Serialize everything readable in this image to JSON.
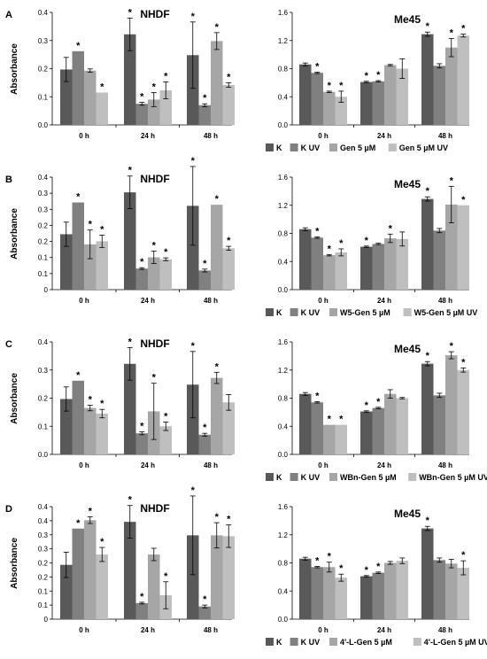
{
  "colors": {
    "K": "#595959",
    "K_UV": "#808080",
    "T1": "#a6a6a6",
    "T2": "#bfbfbf"
  },
  "panels": [
    {
      "letter": "A",
      "legend": [
        "K",
        "K UV",
        "Gen 5 µM",
        "Gen 5 µM UV"
      ]
    },
    {
      "letter": "B",
      "legend": [
        "K",
        "K UV",
        "W5-Gen 5 µM",
        "W5-Gen 5 µM UV"
      ]
    },
    {
      "letter": "C",
      "legend": [
        "K",
        "K UV",
        "WBn-Gen 5 µM",
        "WBn-Gen 5 µM UV"
      ]
    },
    {
      "letter": "D",
      "legend": [
        "K",
        "K UV",
        "4'-L-Gen 5 µM",
        "4'-L-Gen 5 µM UV"
      ]
    }
  ],
  "chart_data": [
    {
      "panel": "A",
      "type": "bar",
      "title": "NHDF",
      "ylabel": "Absorbance",
      "categories": [
        "0 h",
        "24 h",
        "48 h"
      ],
      "ylim": [
        0,
        0.4
      ],
      "yticks": [
        "0.0",
        "0.1",
        "0.2",
        "0.3",
        "0.4"
      ],
      "series": [
        {
          "name": "K",
          "values": [
            0.197,
            0.322,
            0.248
          ],
          "err": [
            0.043,
            0.058,
            0.118
          ],
          "sig": [
            false,
            true,
            true
          ]
        },
        {
          "name": "K UV",
          "values": [
            0.262,
            0.075,
            0.07
          ],
          "err": [
            0.0,
            0.005,
            0.005
          ],
          "sig": [
            true,
            true,
            true
          ]
        },
        {
          "name": "Gen 5 µM",
          "values": [
            0.193,
            0.09,
            0.298
          ],
          "err": [
            0.006,
            0.025,
            0.03
          ],
          "sig": [
            false,
            true,
            true
          ]
        },
        {
          "name": "Gen 5 µM UV",
          "values": [
            0.115,
            0.123,
            0.142
          ],
          "err": [
            0.0,
            0.03,
            0.008
          ],
          "sig": [
            true,
            true,
            true
          ]
        }
      ]
    },
    {
      "panel": "A",
      "type": "bar",
      "title": "Me45",
      "ylabel": "",
      "categories": [
        "0 h",
        "24 h",
        "48 h"
      ],
      "ylim": [
        0,
        1.6
      ],
      "yticks": [
        "0.0",
        "0.4",
        "0.8",
        "1.2",
        "1.6"
      ],
      "series": [
        {
          "name": "K",
          "values": [
            0.86,
            0.61,
            1.29
          ],
          "err": [
            0.02,
            0.01,
            0.03
          ],
          "sig": [
            false,
            true,
            true
          ]
        },
        {
          "name": "K UV",
          "values": [
            0.74,
            0.62,
            0.84
          ],
          "err": [
            0.01,
            0.01,
            0.03
          ],
          "sig": [
            true,
            true,
            false
          ]
        },
        {
          "name": "Gen 5 µM",
          "values": [
            0.47,
            0.85,
            1.1
          ],
          "err": [
            0.01,
            0.01,
            0.13
          ],
          "sig": [
            true,
            false,
            true
          ]
        },
        {
          "name": "Gen 5 µM UV",
          "values": [
            0.4,
            0.8,
            1.27
          ],
          "err": [
            0.08,
            0.14,
            0.02
          ],
          "sig": [
            true,
            false,
            true
          ]
        }
      ]
    },
    {
      "panel": "B",
      "type": "bar",
      "title": "NHDF",
      "ylabel": "Absorbance",
      "categories": [
        "0 h",
        "24 h",
        "48 h"
      ],
      "ylim": [
        0,
        0.4
      ],
      "yticks": [
        "0",
        "0.1",
        "0.1",
        "0.2",
        "0.2",
        "0.3",
        "0.3",
        "0.4"
      ],
      "series": [
        {
          "name": "K",
          "values": [
            0.197,
            0.346,
            0.298
          ],
          "err": [
            0.043,
            0.058,
            0.14
          ],
          "sig": [
            false,
            true,
            true
          ]
        },
        {
          "name": "K UV",
          "values": [
            0.31,
            0.075,
            0.068
          ],
          "err": [
            0.0,
            0.003,
            0.005
          ],
          "sig": [
            true,
            true,
            true
          ]
        },
        {
          "name": "W5-Gen 5 µM",
          "values": [
            0.161,
            0.115,
            0.302
          ],
          "err": [
            0.051,
            0.022,
            0.0
          ],
          "sig": [
            true,
            true,
            true
          ]
        },
        {
          "name": "W5-Gen 5 µM UV",
          "values": [
            0.172,
            0.108,
            0.147
          ],
          "err": [
            0.022,
            0.005,
            0.007
          ],
          "sig": [
            true,
            true,
            true
          ]
        }
      ]
    },
    {
      "panel": "B",
      "type": "bar",
      "title": "Me45",
      "ylabel": "",
      "categories": [
        "0 h",
        "24 h",
        "48 h"
      ],
      "ylim": [
        0,
        1.6
      ],
      "yticks": [
        "0.0",
        "0.4",
        "0.8",
        "1.2",
        "1.6"
      ],
      "series": [
        {
          "name": "K",
          "values": [
            0.86,
            0.61,
            1.29
          ],
          "err": [
            0.02,
            0.01,
            0.03
          ],
          "sig": [
            false,
            true,
            true
          ]
        },
        {
          "name": "K UV",
          "values": [
            0.74,
            0.65,
            0.84
          ],
          "err": [
            0.01,
            0.01,
            0.03
          ],
          "sig": [
            true,
            false,
            false
          ]
        },
        {
          "name": "W5-Gen 5 µM",
          "values": [
            0.49,
            0.73,
            1.21
          ],
          "err": [
            0.01,
            0.06,
            0.26
          ],
          "sig": [
            true,
            true,
            true
          ]
        },
        {
          "name": "W5-Gen 5 µM UV",
          "values": [
            0.53,
            0.72,
            1.2
          ],
          "err": [
            0.05,
            0.1,
            0.0
          ],
          "sig": [
            true,
            false,
            true
          ]
        }
      ]
    },
    {
      "panel": "C",
      "type": "bar",
      "title": "NHDF",
      "ylabel": "Absorbance",
      "categories": [
        "0 h",
        "24 h",
        "48 h"
      ],
      "ylim": [
        0,
        0.4
      ],
      "yticks": [
        "0.0",
        "0.1",
        "0.2",
        "0.3",
        "0.4"
      ],
      "series": [
        {
          "name": "K",
          "values": [
            0.197,
            0.322,
            0.248
          ],
          "err": [
            0.043,
            0.058,
            0.118
          ],
          "sig": [
            false,
            true,
            true
          ]
        },
        {
          "name": "K UV",
          "values": [
            0.262,
            0.075,
            0.07
          ],
          "err": [
            0.0,
            0.005,
            0.005
          ],
          "sig": [
            true,
            true,
            true
          ]
        },
        {
          "name": "WBn-Gen 5 µM",
          "values": [
            0.165,
            0.153,
            0.272
          ],
          "err": [
            0.01,
            0.1,
            0.02
          ],
          "sig": [
            true,
            true,
            true
          ]
        },
        {
          "name": "WBn-Gen 5 µM UV",
          "values": [
            0.145,
            0.1,
            0.185
          ],
          "err": [
            0.015,
            0.015,
            0.028
          ],
          "sig": [
            true,
            true,
            false
          ]
        }
      ]
    },
    {
      "panel": "C",
      "type": "bar",
      "title": "Me45",
      "ylabel": "",
      "categories": [
        "0 h",
        "24 h",
        "48 h"
      ],
      "ylim": [
        0,
        1.6
      ],
      "yticks": [
        "0.0",
        "0.4",
        "0.8",
        "1.2",
        "1.6"
      ],
      "series": [
        {
          "name": "K",
          "values": [
            0.86,
            0.61,
            1.29
          ],
          "err": [
            0.02,
            0.01,
            0.03
          ],
          "sig": [
            false,
            true,
            true
          ]
        },
        {
          "name": "K UV",
          "values": [
            0.74,
            0.66,
            0.84
          ],
          "err": [
            0.01,
            0.01,
            0.03
          ],
          "sig": [
            true,
            true,
            false
          ]
        },
        {
          "name": "WBn-Gen 5 µM",
          "values": [
            0.42,
            0.86,
            1.41
          ],
          "err": [
            0.0,
            0.06,
            0.05
          ],
          "sig": [
            true,
            false,
            true
          ]
        },
        {
          "name": "WBn-Gen 5 µM UV",
          "values": [
            0.42,
            0.8,
            1.2
          ],
          "err": [
            0.0,
            0.01,
            0.03
          ],
          "sig": [
            true,
            false,
            true
          ]
        }
      ]
    },
    {
      "panel": "D",
      "type": "bar",
      "title": "NHDF",
      "ylabel": "Absorbance",
      "categories": [
        "0 h",
        "24 h",
        "48 h"
      ],
      "ylim": [
        0,
        0.4
      ],
      "yticks": [
        "0",
        "0.1",
        "0.1",
        "0.2",
        "0.2",
        "0.3",
        "0.3",
        "0.4",
        "0.4"
      ],
      "series": [
        {
          "name": "K",
          "values": [
            0.193,
            0.346,
            0.298
          ],
          "err": [
            0.045,
            0.058,
            0.14
          ],
          "sig": [
            false,
            true,
            true
          ]
        },
        {
          "name": "K UV",
          "values": [
            0.322,
            0.057,
            0.045
          ],
          "err": [
            0.0,
            0.003,
            0.005
          ],
          "sig": [
            true,
            true,
            true
          ]
        },
        {
          "name": "4'-L-Gen 5 µM",
          "values": [
            0.352,
            0.23,
            0.298
          ],
          "err": [
            0.012,
            0.022,
            0.045
          ],
          "sig": [
            true,
            false,
            true
          ]
        },
        {
          "name": "4'-L-Gen 5 µM UV",
          "values": [
            0.23,
            0.085,
            0.295
          ],
          "err": [
            0.025,
            0.048,
            0.04
          ],
          "sig": [
            true,
            true,
            true
          ]
        }
      ]
    },
    {
      "panel": "D",
      "type": "bar",
      "title": "Me45",
      "ylabel": "",
      "categories": [
        "0 h",
        "24 h",
        "48 h"
      ],
      "ylim": [
        0,
        1.6
      ],
      "yticks": [
        "0.0",
        "0.4",
        "0.8",
        "1.2",
        "1.6"
      ],
      "series": [
        {
          "name": "K",
          "values": [
            0.86,
            0.61,
            1.29
          ],
          "err": [
            0.02,
            0.01,
            0.03
          ],
          "sig": [
            false,
            true,
            true
          ]
        },
        {
          "name": "K UV",
          "values": [
            0.74,
            0.66,
            0.84
          ],
          "err": [
            0.01,
            0.01,
            0.03
          ],
          "sig": [
            true,
            true,
            false
          ]
        },
        {
          "name": "4'-L-Gen 5 µM",
          "values": [
            0.74,
            0.8,
            0.79
          ],
          "err": [
            0.07,
            0.02,
            0.06
          ],
          "sig": [
            true,
            false,
            false
          ]
        },
        {
          "name": "4'-L-Gen 5 µM UV",
          "values": [
            0.59,
            0.83,
            0.73
          ],
          "err": [
            0.05,
            0.04,
            0.1
          ],
          "sig": [
            true,
            false,
            true
          ]
        }
      ]
    }
  ]
}
